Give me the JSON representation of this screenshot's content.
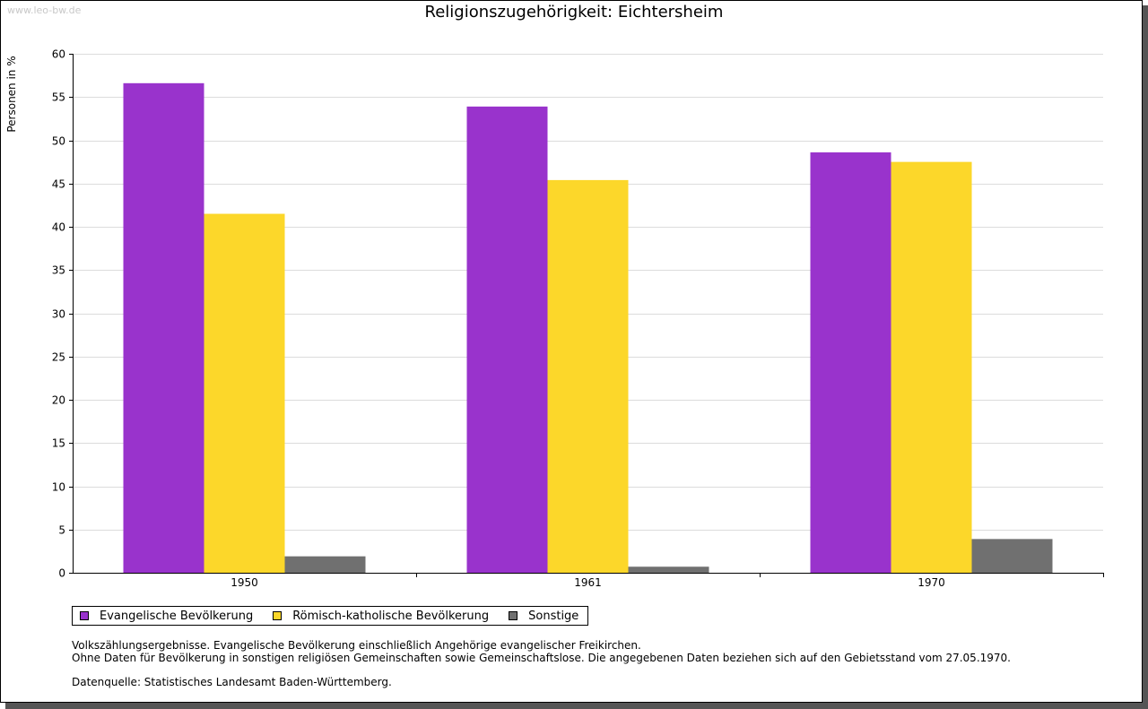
{
  "watermark": "www.leo-bw.de",
  "chart_data": {
    "type": "bar",
    "title": "Religionszugehörigkeit: Eichtersheim",
    "xlabel": "",
    "ylabel": "Personen in %",
    "ylim": [
      0,
      60
    ],
    "yticks": [
      "0",
      "5",
      "10",
      "15",
      "20",
      "25",
      "30",
      "35",
      "40",
      "45",
      "50",
      "55",
      "60"
    ],
    "categories": [
      "1950",
      "1961",
      "1970"
    ],
    "series": [
      {
        "name": "Evangelische Bevölkerung",
        "color": "#9933cc",
        "values": [
          56.6,
          53.9,
          48.6
        ]
      },
      {
        "name": "Römisch-katholische Bevölkerung",
        "color": "#fcd72a",
        "values": [
          41.5,
          45.4,
          47.5
        ]
      },
      {
        "name": "Sonstige",
        "color": "#707070",
        "values": [
          1.9,
          0.7,
          3.9
        ]
      }
    ],
    "grid": true,
    "legend": "bottom-left"
  },
  "notes": {
    "line1": "Volkszählungsergebnisse. Evangelische Bevölkerung einschließlich Angehörige evangelischer Freikirchen.",
    "line2": "Ohne Daten für Bevölkerung in sonstigen religiösen Gemeinschaften sowie Gemeinschaftslose. Die angegebenen Daten beziehen sich auf den Gebietsstand vom 27.05.1970.",
    "source": "Datenquelle: Statistisches Landesamt Baden-Württemberg."
  }
}
